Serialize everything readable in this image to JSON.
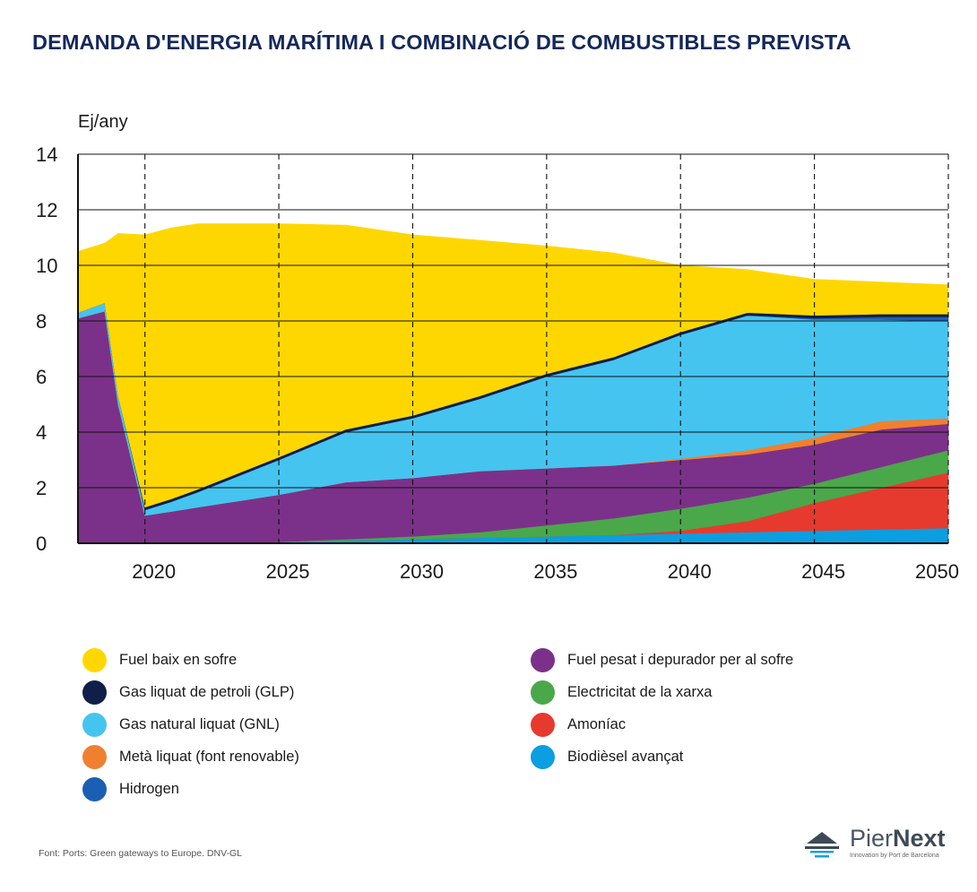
{
  "title": "DEMANDA D'ENERGIA MARÍTIMA I COMBINACIÓ DE COMBUSTIBLES PREVISTA",
  "chart_data": {
    "type": "area",
    "ylabel": "Ej/any",
    "ylim": [
      0,
      14
    ],
    "yticks": [
      0,
      2,
      4,
      6,
      8,
      10,
      12,
      14
    ],
    "xlim": [
      2017.5,
      2050
    ],
    "xticks": [
      2020,
      2025,
      2030,
      2035,
      2040,
      2045,
      2050
    ],
    "grid": "horizontal solid, vertical dashed",
    "stacked": true,
    "x": [
      2017.5,
      2018.5,
      2019,
      2020,
      2021,
      2022,
      2025,
      2027.5,
      2030,
      2032.5,
      2035,
      2037.5,
      2040,
      2042.5,
      2045,
      2047.5,
      2050
    ],
    "series": [
      {
        "name": "Biodièsel avançat",
        "color": "#0b9ee0",
        "values": [
          0,
          0,
          0,
          0,
          0,
          0,
          0.05,
          0.1,
          0.15,
          0.2,
          0.25,
          0.3,
          0.35,
          0.4,
          0.45,
          0.5,
          0.55
        ]
      },
      {
        "name": "Amoníac",
        "color": "#e63a2e",
        "values": [
          0,
          0,
          0,
          0,
          0,
          0,
          0,
          0,
          0,
          0,
          0,
          0,
          0.1,
          0.4,
          1.0,
          1.5,
          2.0
        ]
      },
      {
        "name": "Electricitat de la xarxa",
        "color": "#4aa84a",
        "values": [
          0,
          0,
          0,
          0,
          0,
          0,
          0,
          0.05,
          0.1,
          0.2,
          0.4,
          0.6,
          0.8,
          0.85,
          0.7,
          0.75,
          0.8
        ]
      },
      {
        "name": "Fuel pesat i depurador per al sofre",
        "color": "#7b3189",
        "values": [
          8.1,
          8.35,
          5.0,
          1.0,
          1.15,
          1.3,
          1.7,
          2.05,
          2.1,
          2.2,
          2.05,
          1.9,
          1.75,
          1.55,
          1.4,
          1.35,
          0.95
        ]
      },
      {
        "name": "Metà liquat (font renovable)",
        "color": "#f08030",
        "values": [
          0,
          0,
          0,
          0,
          0,
          0,
          0,
          0,
          0,
          0,
          0,
          0,
          0.05,
          0.15,
          0.25,
          0.3,
          0.2
        ]
      },
      {
        "name": "Gas natural liquat (GNL)",
        "color": "#45c4f0",
        "values": [
          0.2,
          0.3,
          0.3,
          0.2,
          0.35,
          0.55,
          1.25,
          1.8,
          2.15,
          2.6,
          3.3,
          3.8,
          4.45,
          4.85,
          4.25,
          3.65,
          3.5
        ]
      },
      {
        "name": "Hidrogen",
        "color": "#1a5fb4",
        "values": [
          0,
          0,
          0,
          0,
          0,
          0,
          0,
          0,
          0,
          0,
          0,
          0,
          0,
          0,
          0.05,
          0.1,
          0.15
        ]
      },
      {
        "name": "Gas liquat de petroli (GLP)",
        "color": "#0f1f4a",
        "values": [
          0,
          0,
          0,
          0.1,
          0.1,
          0.1,
          0.1,
          0.1,
          0.1,
          0.1,
          0.1,
          0.1,
          0.1,
          0.1,
          0.1,
          0.1,
          0.1
        ]
      },
      {
        "name": "Fuel baix en sofre",
        "color": "#ffd700",
        "values": [
          2.2,
          2.15,
          5.85,
          9.8,
          9.75,
          9.55,
          8.4,
          7.35,
          6.5,
          5.6,
          4.6,
          3.75,
          2.4,
          1.55,
          1.3,
          1.15,
          1.05
        ]
      }
    ]
  },
  "legend": {
    "left": [
      {
        "label": "Fuel baix en sofre",
        "color": "#ffd700"
      },
      {
        "label": "Gas liquat de petroli (GLP)",
        "color": "#0f1f4a"
      },
      {
        "label": "Gas natural liquat (GNL)",
        "color": "#45c4f0"
      },
      {
        "label": "Metà liquat (font renovable)",
        "color": "#f08030"
      },
      {
        "label": "Hidrogen",
        "color": "#1a5fb4"
      }
    ],
    "right": [
      {
        "label": "Fuel pesat i depurador per al sofre",
        "color": "#7b3189"
      },
      {
        "label": "Electricitat de la xarxa",
        "color": "#4aa84a"
      },
      {
        "label": "Amoníac",
        "color": "#e63a2e"
      },
      {
        "label": "Biodièsel avançat",
        "color": "#0b9ee0"
      }
    ]
  },
  "source": "Font: Ports: Green gateways to Europe. DNV-GL",
  "logo": {
    "name_light": "Pier",
    "name_bold": "Next",
    "subtitle": "Innovation by Port de Barcelona"
  }
}
